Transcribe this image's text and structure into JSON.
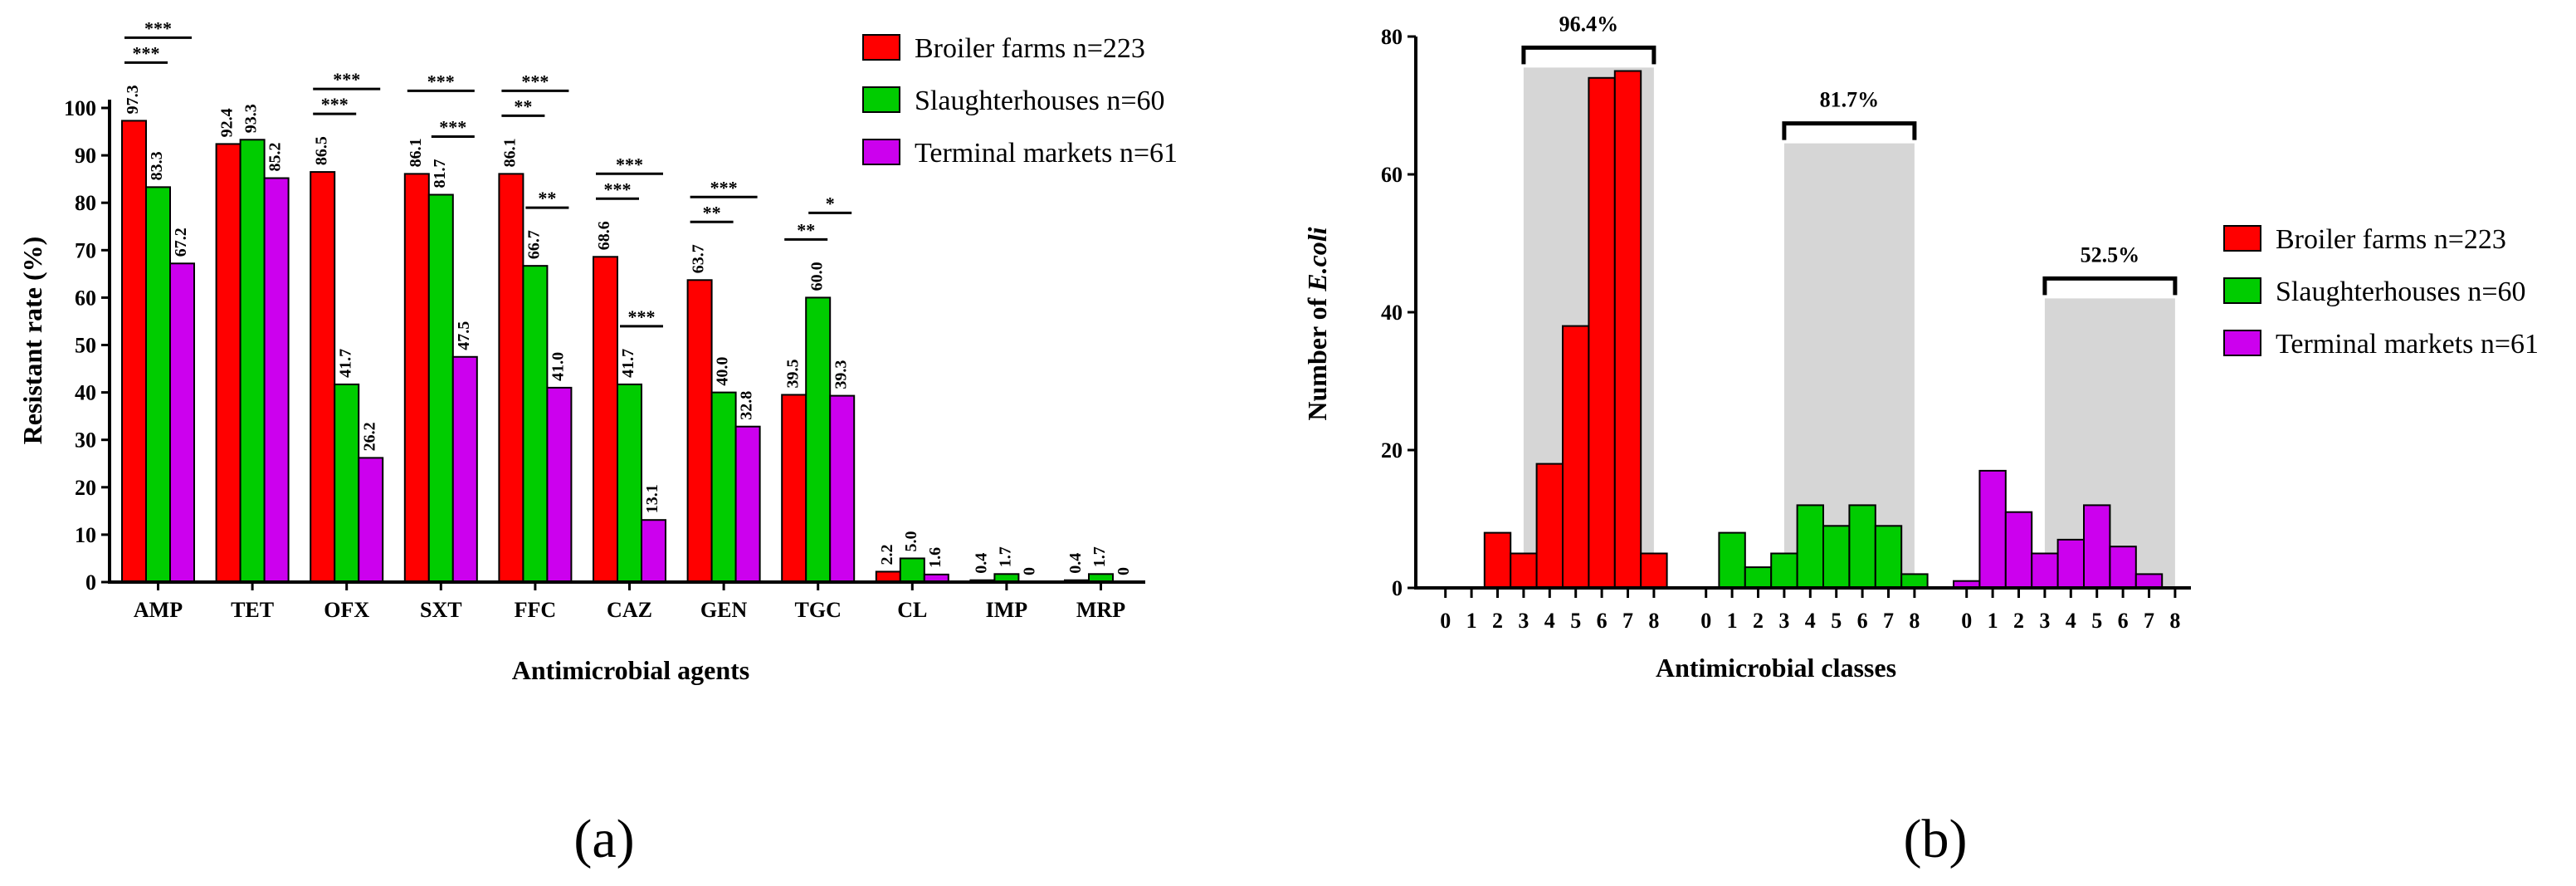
{
  "chart_data": [
    {
      "panel": "(a)",
      "type": "bar",
      "title": "",
      "xlabel": "Antimicrobial agents",
      "ylabel": "Resistant rate (%)",
      "ylim": [
        0,
        100
      ],
      "yticks": [
        0,
        10,
        20,
        30,
        40,
        50,
        60,
        70,
        80,
        90,
        100
      ],
      "categories": [
        "AMP",
        "TET",
        "OFX",
        "SXT",
        "FFC",
        "CAZ",
        "GEN",
        "TGC",
        "CL",
        "IMP",
        "MRP"
      ],
      "series": [
        {
          "name": "Broiler farms n=223",
          "color": "#ff0000",
          "values": [
            97.3,
            92.4,
            86.5,
            86.1,
            86.1,
            68.6,
            63.7,
            39.5,
            2.2,
            0.4,
            0.4
          ],
          "labels": [
            "97.3",
            "92.4",
            "86.5",
            "86.1",
            "86.1",
            "68.6",
            "63.7",
            "39.5",
            "2.2",
            "0.4",
            "0.4"
          ]
        },
        {
          "name": "Slaughterhouses n=60",
          "color": "#00cc00",
          "values": [
            83.3,
            93.3,
            41.7,
            81.7,
            66.7,
            41.7,
            40.0,
            60.0,
            5.0,
            1.7,
            1.7
          ],
          "labels": [
            "83.3",
            "93.3",
            "41.7",
            "81.7",
            "66.7",
            "41.7",
            "40.0",
            "60.0",
            "5.0",
            "1.7",
            "1.7"
          ]
        },
        {
          "name": "Terminal markets n=61",
          "color": "#cc00ee",
          "values": [
            67.2,
            85.2,
            26.2,
            47.5,
            41.0,
            13.1,
            32.8,
            39.3,
            1.6,
            0,
            0
          ],
          "labels": [
            "67.2",
            "85.2",
            "26.2",
            "47.5",
            "41.0",
            "13.1",
            "32.8",
            "39.3",
            "1.6",
            "0",
            "0"
          ]
        }
      ],
      "significance": [
        {
          "category": "AMP",
          "from": 0,
          "to": 1,
          "label": "***"
        },
        {
          "category": "AMP",
          "from": 0,
          "to": 2,
          "label": "***"
        },
        {
          "category": "OFX",
          "from": 0,
          "to": 1,
          "label": "***"
        },
        {
          "category": "OFX",
          "from": 0,
          "to": 2,
          "label": "***"
        },
        {
          "category": "SXT",
          "from": 1,
          "to": 2,
          "label": "***"
        },
        {
          "category": "SXT",
          "from": 0,
          "to": 2,
          "label": "***"
        },
        {
          "category": "FFC",
          "from": 0,
          "to": 1,
          "label": "**"
        },
        {
          "category": "FFC",
          "from": 0,
          "to": 2,
          "label": "***"
        },
        {
          "category": "FFC",
          "from": 1,
          "to": 2,
          "label": "**"
        },
        {
          "category": "CAZ",
          "from": 0,
          "to": 1,
          "label": "***"
        },
        {
          "category": "CAZ",
          "from": 0,
          "to": 2,
          "label": "***"
        },
        {
          "category": "CAZ",
          "from": 1,
          "to": 2,
          "label": "***"
        },
        {
          "category": "GEN",
          "from": 0,
          "to": 1,
          "label": "**"
        },
        {
          "category": "GEN",
          "from": 0,
          "to": 2,
          "label": "***"
        },
        {
          "category": "TGC",
          "from": 0,
          "to": 1,
          "label": "**"
        },
        {
          "category": "TGC",
          "from": 1,
          "to": 2,
          "label": "*"
        }
      ],
      "legend": "top-right"
    },
    {
      "panel": "(b)",
      "type": "bar",
      "title": "",
      "xlabel": "Antimicrobial classes",
      "ylabel_prefix": "Number of ",
      "ylabel_italic": "E.coli",
      "ylim": [
        0,
        80
      ],
      "yticks": [
        0,
        20,
        40,
        60,
        80
      ],
      "categories": [
        "0",
        "1",
        "2",
        "3",
        "4",
        "5",
        "6",
        "7",
        "8"
      ],
      "series": [
        {
          "name": "Broiler farms n=223",
          "color": "#ff0000",
          "values": [
            0,
            0,
            8,
            5,
            18,
            38,
            74,
            75,
            5
          ]
        },
        {
          "name": "Slaughterhouses n=60",
          "color": "#00cc00",
          "values": [
            0,
            8,
            3,
            5,
            12,
            9,
            12,
            9,
            2
          ]
        },
        {
          "name": "Terminal markets n=61",
          "color": "#cc00ee",
          "values": [
            1,
            17,
            11,
            5,
            7,
            12,
            6,
            2,
            0
          ]
        }
      ],
      "highlights": [
        {
          "series": 0,
          "from_class": 3,
          "to_class": 8,
          "level": 75.5,
          "label": "96.4%"
        },
        {
          "series": 1,
          "from_class": 3,
          "to_class": 8,
          "level": 64.5,
          "label": "81.7%"
        },
        {
          "series": 2,
          "from_class": 3,
          "to_class": 8,
          "level": 42,
          "label": "52.5%"
        }
      ],
      "legend": "right"
    }
  ]
}
